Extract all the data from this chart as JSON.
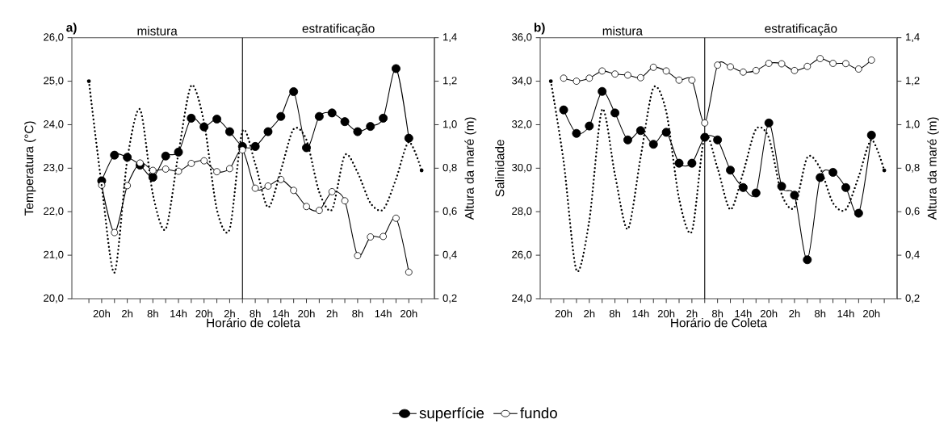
{
  "chart_data": [
    {
      "type": "line",
      "title": "a)",
      "annotations": [
        "mistura",
        "estratificação"
      ],
      "xlabel": "Horário de coleta",
      "ylabel": "Temperatura (°C)",
      "y2label": "Altura da maré (m)",
      "categories": [
        null,
        "20h",
        null,
        "2h",
        null,
        "8h",
        null,
        "14h",
        null,
        "20h",
        null,
        "2h",
        null,
        "8h",
        null,
        "14h",
        null,
        "20h",
        null,
        "2h",
        null,
        "8h",
        null,
        "14h",
        null,
        "20h",
        null
      ],
      "ylim": [
        20,
        26
      ],
      "yticks": [
        {
          "value": 20,
          "label": "20,0"
        },
        {
          "value": 21,
          "label": "21,0"
        },
        {
          "value": 22,
          "label": "22,0"
        },
        {
          "value": 23,
          "label": "23,0"
        },
        {
          "value": 24,
          "label": "24,0"
        },
        {
          "value": 25,
          "label": "25,0"
        },
        {
          "value": 26,
          "label": "26,0"
        }
      ],
      "y2lim": [
        0.2,
        1.4
      ],
      "y2ticks": [
        {
          "value": 0.2,
          "label": "0,2"
        },
        {
          "value": 0.4,
          "label": "0,4"
        },
        {
          "value": 0.6,
          "label": "0,6"
        },
        {
          "value": 0.8,
          "label": "0,8"
        },
        {
          "value": 1.0,
          "label": "1,0"
        },
        {
          "value": 1.2,
          "label": "1,2"
        },
        {
          "value": 1.4,
          "label": "1,4"
        }
      ],
      "marker": "circle",
      "line_style": "solid",
      "series": [
        {
          "color": "#000000",
          "values": [
            null,
            22.71,
            23.3,
            23.25,
            23.07,
            22.79,
            23.28,
            23.37,
            24.15,
            23.95,
            24.13,
            23.84,
            23.5,
            23.5,
            23.84,
            24.19,
            24.76,
            23.47,
            24.19,
            24.27,
            24.07,
            23.84,
            23.96,
            24.15,
            25.29,
            23.69,
            null
          ]
        },
        {
          "color": "#000000",
          "values": [
            null,
            22.61,
            21.52,
            22.6,
            23.12,
            22.95,
            22.98,
            22.93,
            23.11,
            23.17,
            22.92,
            22.99,
            23.42,
            22.54,
            22.59,
            22.74,
            22.49,
            22.12,
            22.03,
            22.46,
            22.25,
            20.99,
            21.42,
            21.43,
            21.85,
            20.61,
            null
          ]
        },
        {
          "color": "#000000",
          "axis": "y2",
          "marker": "none",
          "line_style": "dotted",
          "values": [
            1.2,
            0.72,
            0.32,
            0.84,
            1.07,
            0.68,
            0.52,
            0.87,
            1.18,
            1.01,
            0.61,
            0.52,
            0.97,
            0.82,
            0.62,
            0.79,
            0.98,
            0.93,
            0.69,
            0.61,
            0.86,
            0.78,
            0.64,
            0.61,
            0.75,
            0.92,
            0.79
          ]
        }
      ]
    },
    {
      "type": "line",
      "title": "b)",
      "annotations": [
        "mistura",
        "estratificação"
      ],
      "xlabel": "Horário de Coleta",
      "ylabel": "Salinidade",
      "y2label": "Altura da maré (m)",
      "categories": [
        null,
        "20h",
        null,
        "2h",
        null,
        "8h",
        null,
        "14h",
        null,
        "20h",
        null,
        "2h",
        null,
        "8h",
        null,
        "14h",
        null,
        "20h",
        null,
        "2h",
        null,
        "8h",
        null,
        "14h",
        null,
        "20h",
        null
      ],
      "ylim": [
        24,
        36
      ],
      "yticks": [
        {
          "value": 24,
          "label": "24,0"
        },
        {
          "value": 26,
          "label": "26,0"
        },
        {
          "value": 28,
          "label": "28,0"
        },
        {
          "value": 30,
          "label": "30,0"
        },
        {
          "value": 32,
          "label": "32,0"
        },
        {
          "value": 34,
          "label": "34,0"
        },
        {
          "value": 36,
          "label": "36,0"
        }
      ],
      "y2lim": [
        0.2,
        1.4
      ],
      "y2ticks": [
        {
          "value": 0.2,
          "label": "0,2"
        },
        {
          "value": 0.4,
          "label": "0,4"
        },
        {
          "value": 0.6,
          "label": "0,6"
        },
        {
          "value": 0.8,
          "label": "0,8"
        },
        {
          "value": 1.0,
          "label": "1,0"
        },
        {
          "value": 1.2,
          "label": "1,2"
        },
        {
          "value": 1.4,
          "label": "1,4"
        }
      ],
      "marker": "circle",
      "line_style": "solid",
      "legend": "bottom",
      "series": [
        {
          "name": "superfície",
          "color": "#000000",
          "values": [
            null,
            32.68,
            31.6,
            31.94,
            33.53,
            32.54,
            31.3,
            31.73,
            31.1,
            31.65,
            30.23,
            30.23,
            31.42,
            31.3,
            29.91,
            29.11,
            28.86,
            32.08,
            29.17,
            28.76,
            25.79,
            29.57,
            29.81,
            29.11,
            27.93,
            31.52,
            null
          ]
        },
        {
          "name": "fundo",
          "color": "#000000",
          "values": [
            null,
            34.14,
            34.0,
            34.14,
            34.47,
            34.33,
            34.28,
            34.16,
            34.64,
            34.47,
            34.05,
            34.05,
            32.08,
            34.74,
            34.66,
            34.42,
            34.49,
            34.82,
            34.8,
            34.49,
            34.68,
            35.04,
            34.82,
            34.81,
            34.56,
            34.97,
            null
          ]
        },
        {
          "color": "#000000",
          "axis": "y2",
          "marker": "none",
          "line_style": "dotted",
          "values": [
            1.2,
            0.83,
            0.33,
            0.56,
            1.07,
            0.77,
            0.52,
            0.85,
            1.17,
            1.06,
            0.66,
            0.51,
            0.95,
            0.8,
            0.61,
            0.78,
            0.98,
            0.94,
            0.68,
            0.62,
            0.85,
            0.8,
            0.64,
            0.61,
            0.76,
            0.93,
            0.79
          ]
        }
      ]
    }
  ]
}
